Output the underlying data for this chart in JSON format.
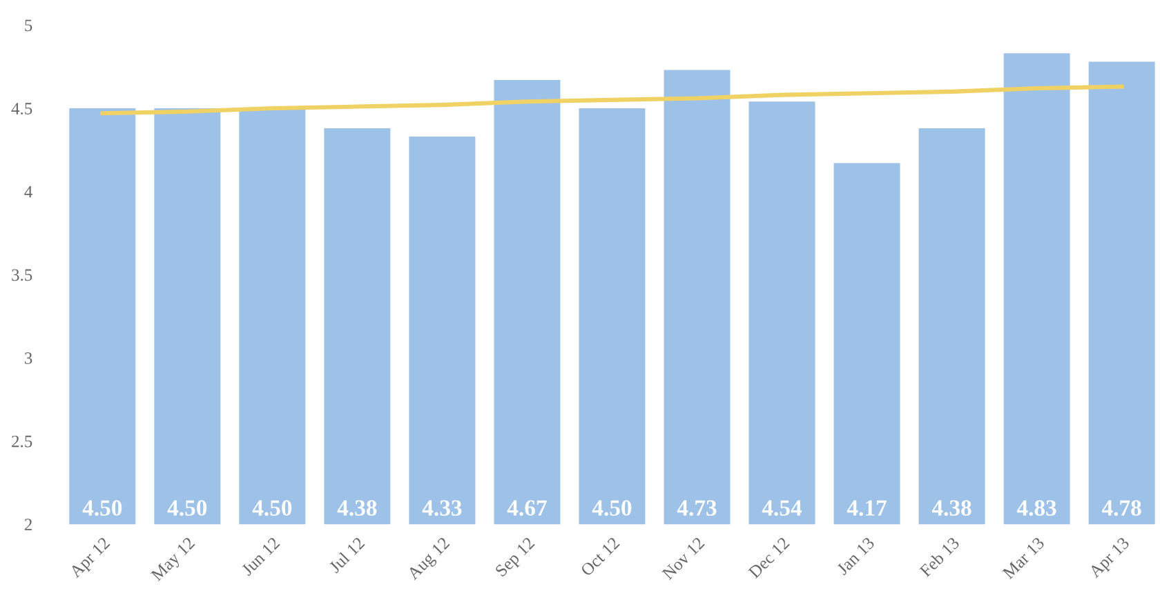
{
  "chart_data": {
    "type": "bar",
    "categories": [
      "Apr 12",
      "May 12",
      "Jun 12",
      "Jul 12",
      "Aug 12",
      "Sep 12",
      "Oct 12",
      "Nov 12",
      "Dec 12",
      "Jan 13",
      "Feb 13",
      "Mar 13",
      "Apr 13"
    ],
    "series": [
      {
        "color": "#9ec1e7",
        "values": [
          4.5,
          4.5,
          4.5,
          4.38,
          4.33,
          4.67,
          4.5,
          4.73,
          4.54,
          4.17,
          4.38,
          4.83,
          4.78
        ],
        "value_labels": [
          "4.50",
          "4.50",
          "4.50",
          "4.38",
          "4.33",
          "4.67",
          "4.50",
          "4.73",
          "4.54",
          "4.17",
          "4.38",
          "4.83",
          "4.78"
        ]
      },
      {
        "type": "line",
        "color": "#f0d264",
        "values": [
          4.47,
          4.48,
          4.5,
          4.51,
          4.52,
          4.54,
          4.55,
          4.56,
          4.58,
          4.59,
          4.6,
          4.62,
          4.63
        ]
      }
    ],
    "ylim": [
      2,
      5
    ],
    "yticks": [
      2,
      2.5,
      3,
      3.5,
      4,
      4.5,
      5
    ],
    "grid": false,
    "marker": "none",
    "line_style": "solid"
  }
}
